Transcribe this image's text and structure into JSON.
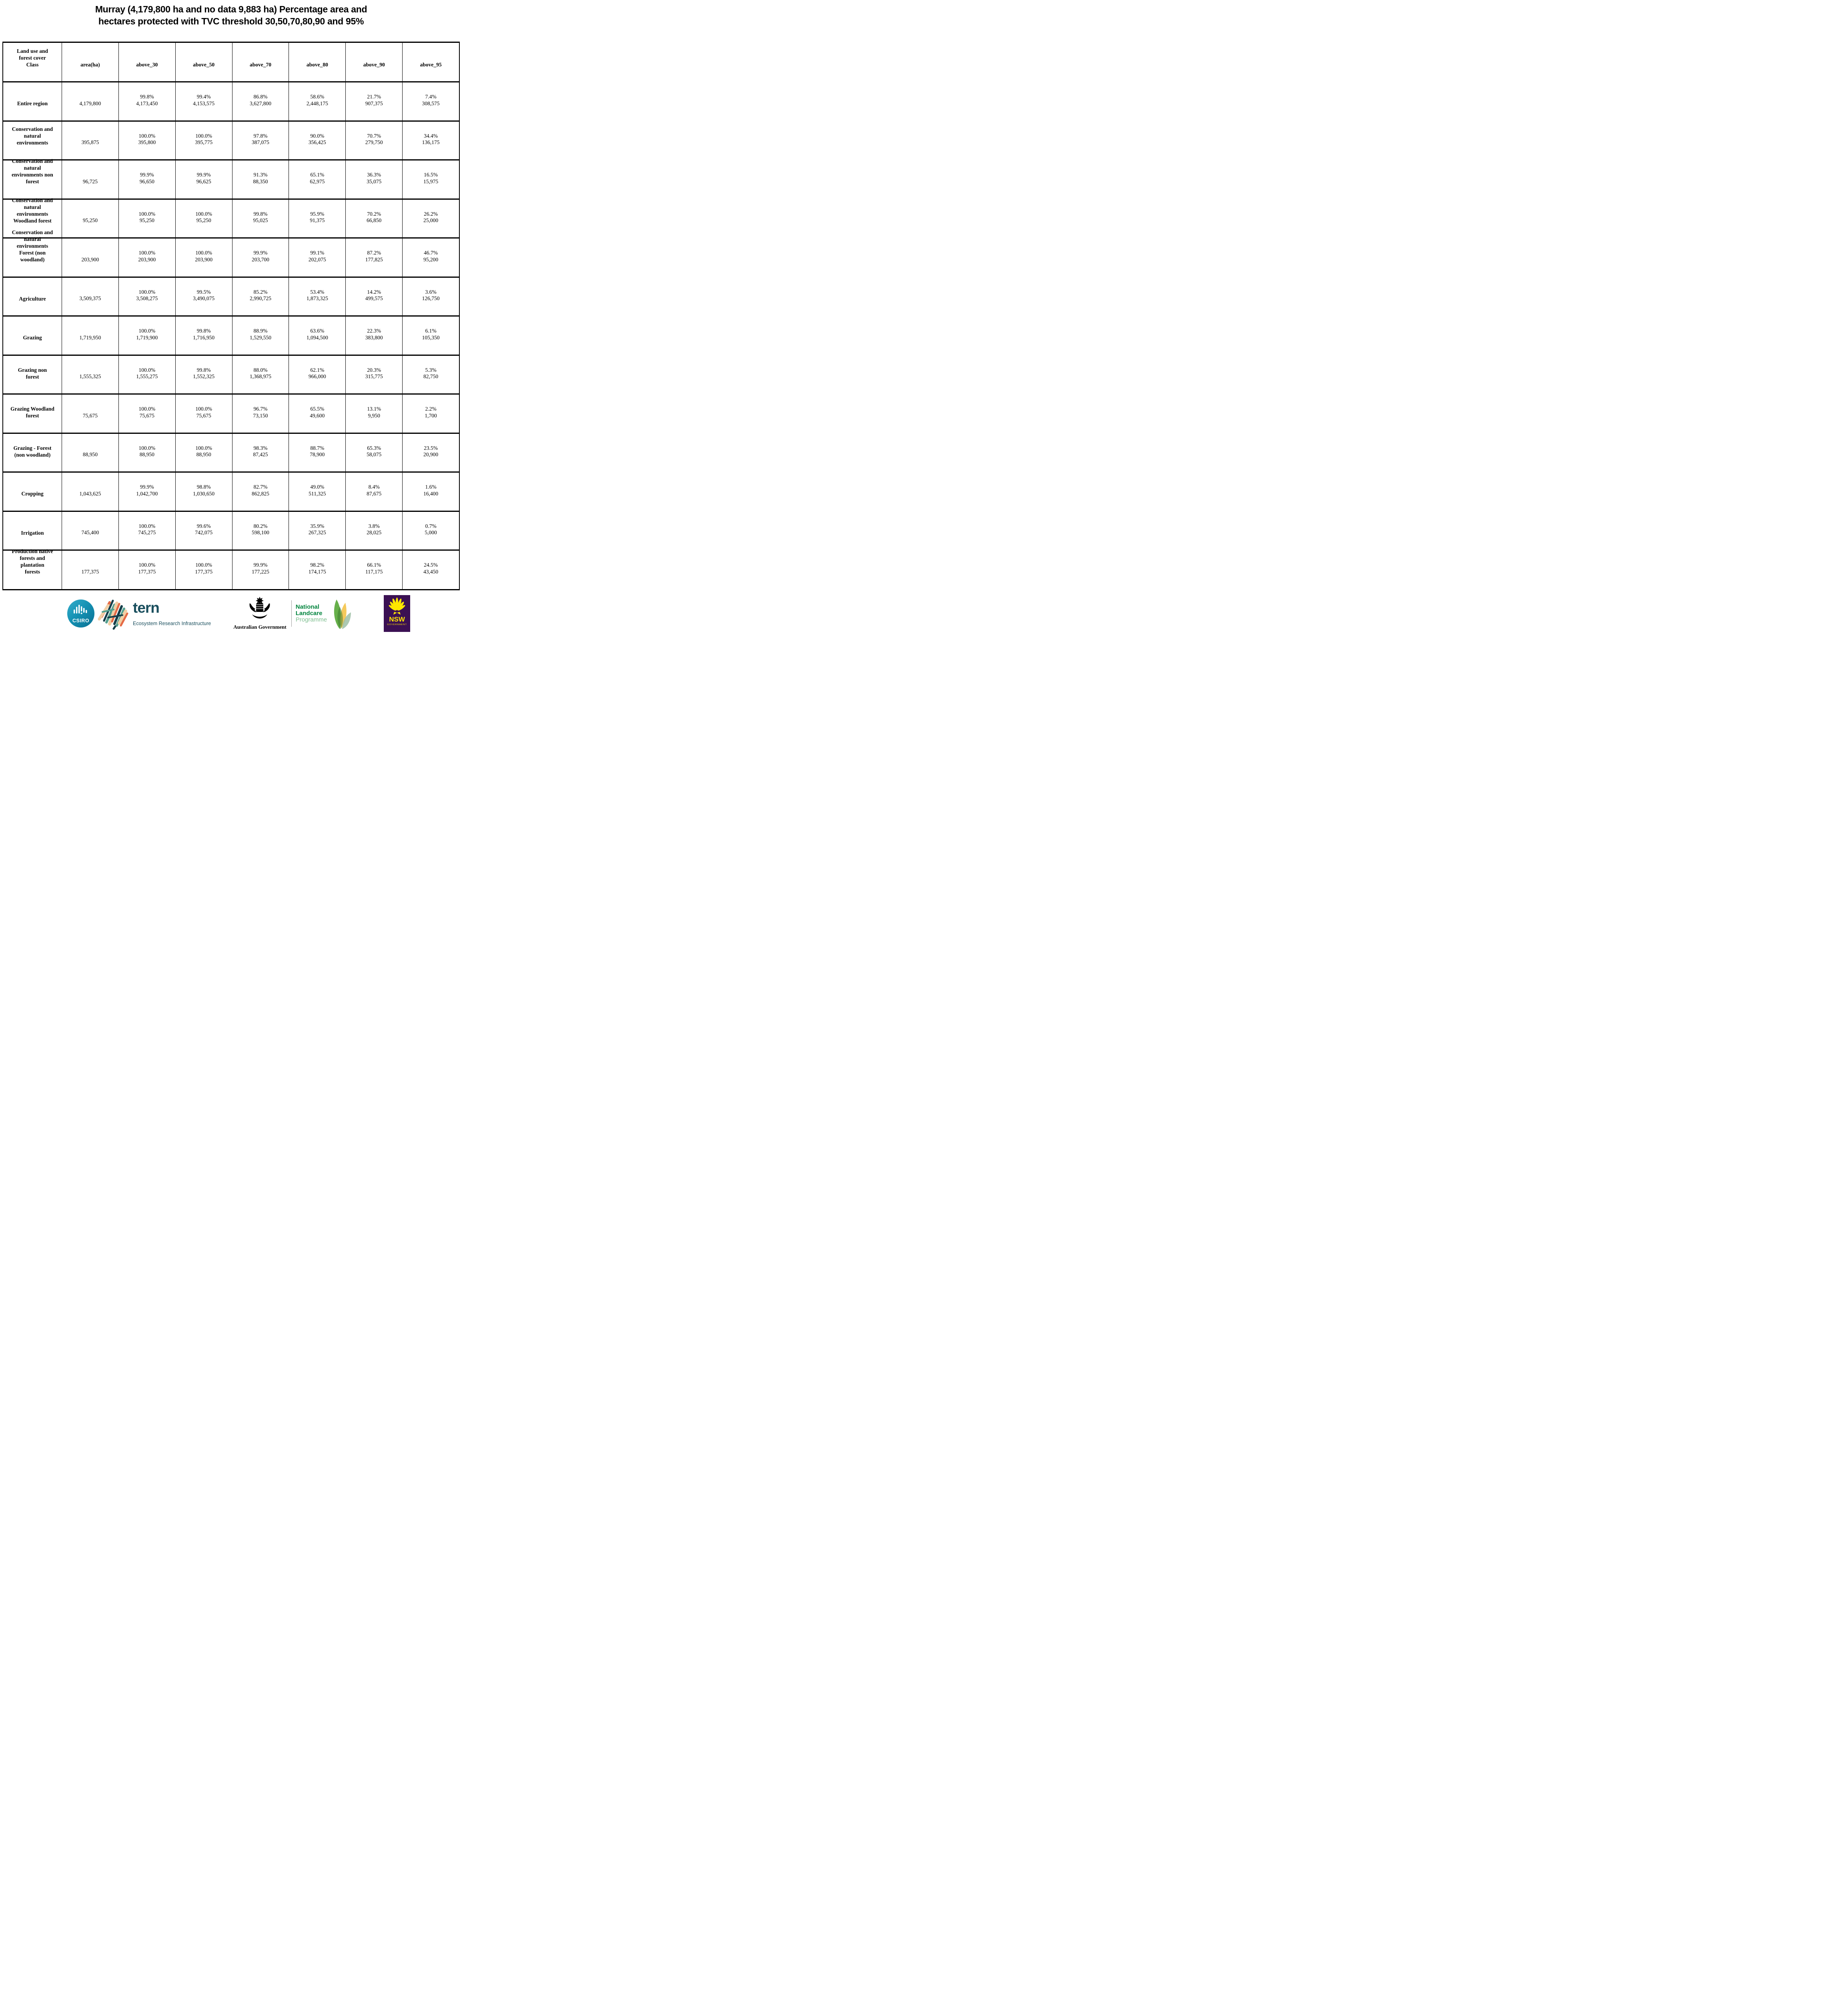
{
  "title": {
    "line1": "Murray (4,179,800 ha and no data 9,883 ha) Percentage area and",
    "line2": "hectares protected with TVC threshold 30,50,70,80,90 and 95%"
  },
  "table": {
    "header": [
      "Land use and\nforest cover\nClass",
      "area(ha)",
      "above_30",
      "above_50",
      "above_70",
      "above_80",
      "above_90",
      "above_95"
    ],
    "rows": [
      {
        "label": "Entire region",
        "cells": [
          "4,179,800",
          "99.8%\n4,173,450",
          "99.4%\n4,153,575",
          "86.8%\n3,627,800",
          "58.6%\n2,448,175",
          "21.7%\n907,375",
          "7.4%\n308,575"
        ]
      },
      {
        "label": "Conservation and\nnatural\nenvironments",
        "cells": [
          "395,875",
          "100.0%\n395,800",
          "100.0%\n395,775",
          "97.8%\n387,075",
          "90.0%\n356,425",
          "70.7%\n279,750",
          "34.4%\n136,175"
        ]
      },
      {
        "label": "Conservation and\nnatural\nenvironments non\nforest",
        "cells": [
          "96,725",
          "99.9%\n96,650",
          "99.9%\n96,625",
          "91.3%\n88,350",
          "65.1%\n62,975",
          "36.3%\n35,075",
          "16.5%\n15,975"
        ]
      },
      {
        "label": "Conservation and\nnatural\nenvironments\nWoodland forest",
        "cells": [
          "95,250",
          "100.0%\n95,250",
          "100.0%\n95,250",
          "99.8%\n95,025",
          "95.9%\n91,375",
          "70.2%\n66,850",
          "26.2%\n25,000"
        ]
      },
      {
        "label": "Conservation and\nnatural\nenvironments\nForest (non\nwoodland)",
        "cells": [
          "203,900",
          "100.0%\n203,900",
          "100.0%\n203,900",
          "99.9%\n203,700",
          "99.1%\n202,075",
          "87.2%\n177,825",
          "46.7%\n95,200"
        ]
      },
      {
        "label": "Agriculture",
        "cells": [
          "3,509,375",
          "100.0%\n3,508,275",
          "99.5%\n3,490,075",
          "85.2%\n2,990,725",
          "53.4%\n1,873,325",
          "14.2%\n499,575",
          "3.6%\n126,750"
        ]
      },
      {
        "label": "Grazing",
        "cells": [
          "1,719,950",
          "100.0%\n1,719,900",
          "99.8%\n1,716,950",
          "88.9%\n1,529,550",
          "63.6%\n1,094,500",
          "22.3%\n383,800",
          "6.1%\n105,350"
        ]
      },
      {
        "label": "Grazing non\nforest",
        "cells": [
          "1,555,325",
          "100.0%\n1,555,275",
          "99.8%\n1,552,325",
          "88.0%\n1,368,975",
          "62.1%\n966,000",
          "20.3%\n315,775",
          "5.3%\n82,750"
        ]
      },
      {
        "label": "Grazing Woodland\nforest",
        "cells": [
          "75,675",
          "100.0%\n75,675",
          "100.0%\n75,675",
          "96.7%\n73,150",
          "65.5%\n49,600",
          "13.1%\n9,950",
          "2.2%\n1,700"
        ]
      },
      {
        "label": "Grazing - Forest\n(non woodland)",
        "cells": [
          "88,950",
          "100.0%\n88,950",
          "100.0%\n88,950",
          "98.3%\n87,425",
          "88.7%\n78,900",
          "65.3%\n58,075",
          "23.5%\n20,900"
        ]
      },
      {
        "label": "Cropping",
        "cells": [
          "1,043,625",
          "99.9%\n1,042,700",
          "98.8%\n1,030,650",
          "82.7%\n862,825",
          "49.0%\n511,325",
          "8.4%\n87,675",
          "1.6%\n16,400"
        ]
      },
      {
        "label": "Irrigation",
        "cells": [
          "745,400",
          "100.0%\n745,275",
          "99.6%\n742,075",
          "80.2%\n598,100",
          "35.9%\n267,325",
          "3.8%\n28,025",
          "0.7%\n5,000"
        ]
      },
      {
        "label": "Production native\nforests and\nplantation\nforests",
        "cells": [
          "177,375",
          "100.0%\n177,375",
          "100.0%\n177,375",
          "99.9%\n177,225",
          "98.2%\n174,175",
          "66.1%\n117,175",
          "24.5%\n43,450"
        ]
      }
    ]
  },
  "footer": {
    "csiro": {
      "label": "CSIRO"
    },
    "tern": {
      "name": "tern",
      "tagline": "Ecosystem Research Infrastructure"
    },
    "australian_government": {
      "label": "Australian Government"
    },
    "landcare": {
      "line1": "National",
      "line2": "Landcare",
      "line3": "Programme"
    },
    "nsw": {
      "name": "NSW",
      "sub": "GOVERNMENT"
    }
  },
  "colors": {
    "csiro_teal_light": "#35aecb",
    "csiro_teal_dark": "#0a7092",
    "tern_teal": "#1a4f5e",
    "tern_orange": "#e56a45",
    "tern_peach": "#f2cfa5",
    "tern_seagreen": "#53a08f",
    "landcare_green": "#00843d",
    "landcare_light_green": "#7fbf90",
    "nsw_purple": "#3b1053",
    "nsw_yellow": "#ffe600"
  }
}
